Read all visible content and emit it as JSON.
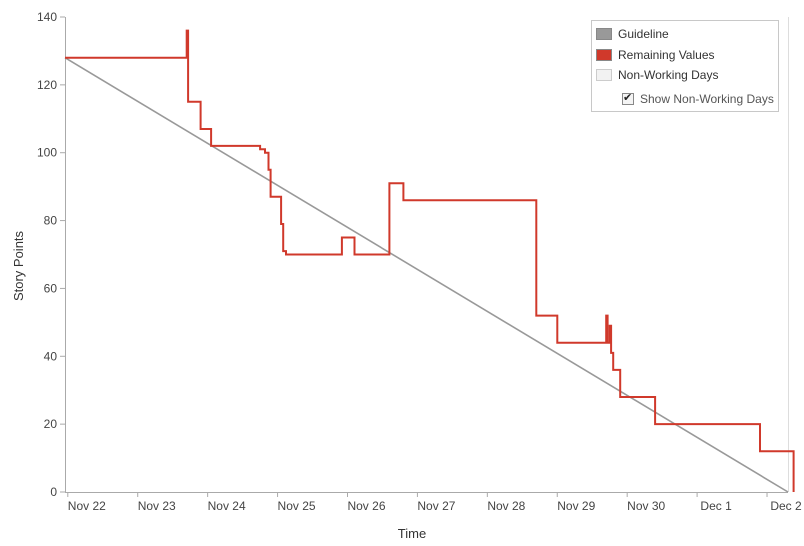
{
  "chart_data": {
    "type": "line",
    "xlabel": "Time",
    "ylabel": "Story Points",
    "ylim": [
      0,
      140
    ],
    "yticks": [
      "0",
      "20",
      "40",
      "60",
      "80",
      "100",
      "120",
      "140"
    ],
    "x_tick_labels": [
      "Nov 22",
      "Nov 23",
      "Nov 24",
      "Nov 25",
      "Nov 26",
      "Nov 27",
      "Nov 28",
      "Nov 29",
      "Nov 30",
      "Dec 1",
      "Dec 2"
    ],
    "x_range_days": [
      -0.04,
      10.3
    ],
    "legend_placement": "top-right",
    "series": [
      {
        "name": "Guideline",
        "color": "#999999",
        "x": [
          -0.04,
          10.3
        ],
        "y": [
          128,
          0
        ]
      },
      {
        "name": "Remaining Values",
        "color": "#d0392b",
        "step": true,
        "x": [
          -0.04,
          1.7,
          1.7,
          1.72,
          1.72,
          1.9,
          1.9,
          2.05,
          2.05,
          2.75,
          2.75,
          2.82,
          2.82,
          2.87,
          2.87,
          2.9,
          2.9,
          3.05,
          3.05,
          3.08,
          3.08,
          3.12,
          3.12,
          3.92,
          3.92,
          4.1,
          4.1,
          4.6,
          4.6,
          4.8,
          4.8,
          6.7,
          6.7,
          7.0,
          7.0,
          7.7,
          7.7,
          7.72,
          7.72,
          7.75,
          7.75,
          7.77,
          7.77,
          7.8,
          7.8,
          7.9,
          7.9,
          8.4,
          8.4,
          9.9,
          9.9,
          10.38,
          10.38
        ],
        "y": [
          128,
          128,
          136,
          136,
          115,
          115,
          107,
          107,
          102,
          102,
          101,
          101,
          100,
          100,
          95,
          95,
          87,
          87,
          79,
          79,
          71,
          71,
          70,
          70,
          75,
          75,
          70,
          70,
          91,
          91,
          86,
          86,
          52,
          52,
          44,
          44,
          52,
          52,
          44,
          44,
          49,
          49,
          41,
          41,
          36,
          36,
          28,
          28,
          20,
          20,
          12,
          12,
          0
        ]
      }
    ]
  },
  "legend": {
    "items": [
      {
        "label": "Guideline",
        "color": "#999999"
      },
      {
        "label": "Remaining Values",
        "color": "#d0392b"
      },
      {
        "label": "Non-Working Days",
        "color": "#f2f2f2"
      }
    ],
    "checkbox_label": "Show Non-Working Days",
    "checkbox_checked": true
  }
}
